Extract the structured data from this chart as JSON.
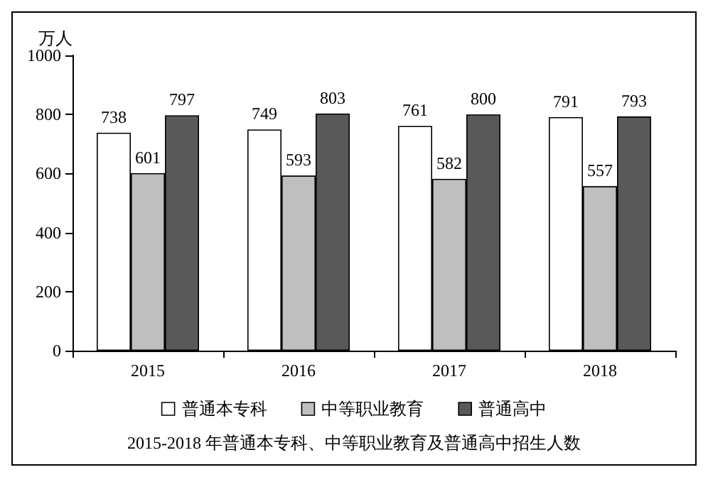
{
  "chart_data": {
    "type": "bar",
    "title": "2015-2018 年普通本专科、中等职业教育及普通高中招生人数",
    "ylabel": "万人",
    "categories": [
      "2015",
      "2016",
      "2017",
      "2018"
    ],
    "series": [
      {
        "name": "普通本专科",
        "color": "#ffffff",
        "values": [
          738,
          749,
          761,
          791
        ]
      },
      {
        "name": "中等职业教育",
        "color": "#bfbfbf",
        "values": [
          601,
          593,
          582,
          557
        ]
      },
      {
        "name": "普通高中",
        "color": "#595959",
        "values": [
          797,
          803,
          800,
          793
        ]
      }
    ],
    "ylim": [
      0,
      1000
    ],
    "yticks": [
      0,
      200,
      400,
      600,
      800,
      1000
    ],
    "grid": false,
    "legend": "bottom",
    "data_labels": true
  }
}
